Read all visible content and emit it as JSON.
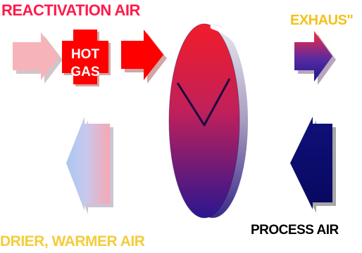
{
  "labels": {
    "reactivation_air": "REACTIVATION AIR",
    "exhaust": "EXHAUS\"",
    "hot_gas_line1": "HOT",
    "hot_gas_line2": "GAS",
    "drier_warmer_air": "DRIER, WARMER AIR",
    "process_air": "PROCESS AIR"
  },
  "colors": {
    "reactivation_title": "#ff1a4a",
    "exhaust_title": "#f2c21a",
    "drier_title": "#f4cc3a",
    "process_title": "#000000",
    "pink_arrow": "#f7b3ba",
    "hot_gas_cross": "#ff0000",
    "red_arrow": "#ff0000",
    "wheel_top": "#f01e2e",
    "wheel_bottom": "#2c1490",
    "process_arrow": "#0b0b6e"
  },
  "icons": {
    "reactivation_inlet": "arrow-right-icon",
    "hot_gas": "cross-icon",
    "heated_air": "arrow-right-icon",
    "wheel_rotation": "curved-arrow-icon",
    "exhaust_outlet": "arrow-right-icon",
    "process_inlet": "arrow-left-icon",
    "drier_outlet": "arrow-left-icon"
  }
}
